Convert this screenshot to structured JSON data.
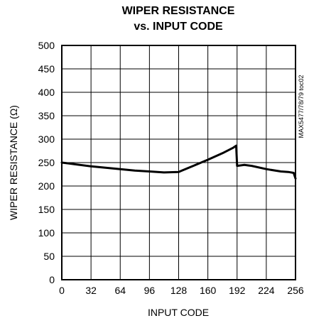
{
  "chart_data": {
    "type": "line",
    "title": "WIPER RESISTANCE",
    "subtitle": "vs. INPUT CODE",
    "xlabel": "INPUT CODE",
    "ylabel": "WIPER RESISTANCE (Ω)",
    "watermark": "MAX5477/78/79 toc02",
    "xlim": [
      0,
      256
    ],
    "ylim": [
      0,
      500
    ],
    "xticks": [
      0,
      32,
      64,
      96,
      128,
      160,
      192,
      224,
      256
    ],
    "yticks": [
      0,
      50,
      100,
      150,
      200,
      250,
      300,
      350,
      400,
      450,
      500
    ],
    "grid": true,
    "legend": "none",
    "line_color": "#000000",
    "series": [
      {
        "x": [
          0,
          8,
          16,
          32,
          48,
          64,
          80,
          96,
          112,
          128,
          144,
          160,
          176,
          188,
          191,
          192,
          200,
          208,
          224,
          240,
          248,
          254,
          256
        ],
        "values": [
          250,
          248,
          246,
          242,
          239,
          236,
          233,
          231,
          229,
          230,
          243,
          256,
          270,
          282,
          286,
          243,
          245,
          243,
          236,
          231,
          230,
          228,
          216
        ]
      }
    ]
  }
}
